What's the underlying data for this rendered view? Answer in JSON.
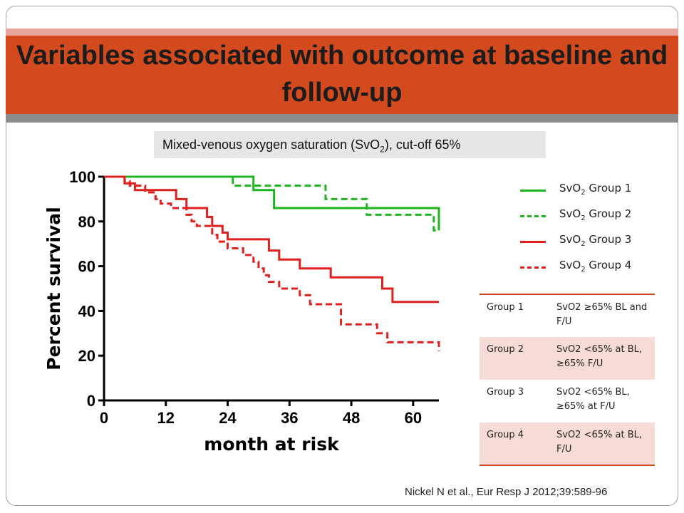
{
  "slide": {
    "title": "Variables associated with outcome at baseline and follow-up",
    "subtitle_pre": "Mixed-venous oxygen saturation (SvO",
    "subtitle_sub": "2",
    "subtitle_post": "), cut-off 65%",
    "citation": "Nickel N et al., Eur Resp J 2012;39:589-96"
  },
  "legend": [
    {
      "pre": "SvO",
      "sub": "2",
      "post": " Group 1",
      "color": "#1fb51f",
      "dash": false
    },
    {
      "pre": "SvO",
      "sub": "2",
      "post": " Group 2",
      "color": "#1fb51f",
      "dash": true
    },
    {
      "pre": "SvO",
      "sub": "2",
      "post": " Group 3",
      "color": "#e01f1f",
      "dash": false
    },
    {
      "pre": "SvO",
      "sub": "2",
      "post": " Group 4",
      "color": "#e01f1f",
      "dash": true
    }
  ],
  "group_table": [
    {
      "group": "Group 1",
      "desc": "SvO2 ≥65% BL and F/U",
      "shade": false
    },
    {
      "group": "Group 2",
      "desc": "SvO2 <65% at BL, ≥65% F/U",
      "shade": true
    },
    {
      "group": "Group 3",
      "desc": "SvO2 <65% BL, ≥65% at F/U",
      "shade": false
    },
    {
      "group": "Group 4",
      "desc": "SvO2 <65% at BL, F/U",
      "shade": true
    }
  ],
  "chart_data": {
    "type": "line",
    "step": true,
    "xlabel": "month at risk",
    "ylabel": "Percent survival",
    "xlim": [
      0,
      65
    ],
    "ylim": [
      0,
      100
    ],
    "xticks": [
      0,
      12,
      24,
      36,
      48,
      60
    ],
    "yticks": [
      0,
      20,
      40,
      60,
      80,
      100
    ],
    "grid": false,
    "series": [
      {
        "name": "SvO2 Group 1",
        "color": "#1fb51f",
        "dash": false,
        "points": [
          [
            0,
            100
          ],
          [
            29,
            100
          ],
          [
            29,
            94
          ],
          [
            33,
            94
          ],
          [
            33,
            86
          ],
          [
            65,
            86
          ],
          [
            65,
            76
          ]
        ]
      },
      {
        "name": "SvO2 Group 2",
        "color": "#1fb51f",
        "dash": true,
        "points": [
          [
            0,
            100
          ],
          [
            25,
            100
          ],
          [
            25,
            96
          ],
          [
            43,
            96
          ],
          [
            43,
            90
          ],
          [
            51,
            90
          ],
          [
            51,
            83
          ],
          [
            64,
            83
          ],
          [
            64,
            76
          ],
          [
            65,
            76
          ]
        ]
      },
      {
        "name": "SvO2 Group 3",
        "color": "#e01f1f",
        "dash": false,
        "points": [
          [
            0,
            100
          ],
          [
            4,
            100
          ],
          [
            4,
            97
          ],
          [
            6,
            97
          ],
          [
            6,
            94
          ],
          [
            14,
            94
          ],
          [
            14,
            90
          ],
          [
            16,
            90
          ],
          [
            16,
            86
          ],
          [
            20,
            86
          ],
          [
            20,
            82
          ],
          [
            21,
            82
          ],
          [
            21,
            78
          ],
          [
            23,
            78
          ],
          [
            23,
            75
          ],
          [
            24,
            75
          ],
          [
            24,
            72
          ],
          [
            32,
            72
          ],
          [
            32,
            67
          ],
          [
            34,
            67
          ],
          [
            34,
            63
          ],
          [
            38,
            63
          ],
          [
            38,
            59
          ],
          [
            44,
            59
          ],
          [
            44,
            55
          ],
          [
            54,
            55
          ],
          [
            54,
            50
          ],
          [
            56,
            50
          ],
          [
            56,
            44
          ],
          [
            65,
            44
          ]
        ]
      },
      {
        "name": "SvO2 Group 4",
        "color": "#e01f1f",
        "dash": true,
        "points": [
          [
            0,
            100
          ],
          [
            4,
            100
          ],
          [
            4,
            98
          ],
          [
            5,
            98
          ],
          [
            5,
            96
          ],
          [
            8,
            96
          ],
          [
            8,
            93
          ],
          [
            10,
            93
          ],
          [
            10,
            90
          ],
          [
            11,
            90
          ],
          [
            11,
            88
          ],
          [
            13,
            88
          ],
          [
            13,
            86
          ],
          [
            16,
            86
          ],
          [
            16,
            83
          ],
          [
            17,
            83
          ],
          [
            17,
            80
          ],
          [
            18,
            80
          ],
          [
            18,
            78
          ],
          [
            21,
            78
          ],
          [
            21,
            74
          ],
          [
            22,
            74
          ],
          [
            22,
            71
          ],
          [
            24,
            71
          ],
          [
            24,
            68
          ],
          [
            27,
            68
          ],
          [
            27,
            65
          ],
          [
            29,
            65
          ],
          [
            29,
            62
          ],
          [
            30,
            62
          ],
          [
            30,
            59
          ],
          [
            31,
            59
          ],
          [
            31,
            56
          ],
          [
            32,
            56
          ],
          [
            32,
            53
          ],
          [
            34,
            53
          ],
          [
            34,
            50
          ],
          [
            38,
            50
          ],
          [
            38,
            47
          ],
          [
            40,
            47
          ],
          [
            40,
            43
          ],
          [
            46,
            43
          ],
          [
            46,
            34
          ],
          [
            53,
            34
          ],
          [
            53,
            30
          ],
          [
            55,
            30
          ],
          [
            55,
            26
          ],
          [
            65,
            26
          ],
          [
            65,
            22
          ]
        ]
      }
    ]
  }
}
